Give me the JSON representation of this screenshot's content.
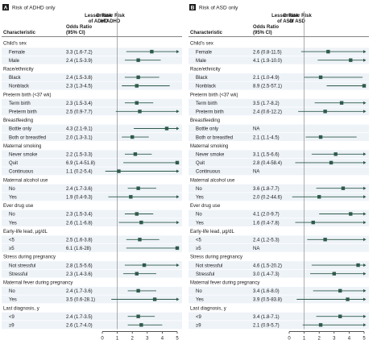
{
  "chart_data": [
    {
      "type": "forest",
      "panel_letter": "A",
      "title": "Risk of ADHD only",
      "columns": [
        "Characteristic",
        "Odds Ratio (95% CI)",
        "Lesser Risk of ADHD",
        "Greater Risk of ADHD"
      ],
      "xlabel": "Odds Ratio (95% CI)",
      "xlim": [
        0,
        5
      ],
      "xticks": [
        "0",
        "1",
        "2",
        "3",
        "4",
        "5"
      ],
      "reference_line": 1,
      "rows": [
        {
          "kind": "group",
          "label": "Child's sex"
        },
        {
          "kind": "item",
          "label": "Female",
          "or": 3.3,
          "lo": 1.6,
          "hi": 7.2,
          "ci_text": "3.3 (1.6-7.2)"
        },
        {
          "kind": "item",
          "label": "Male",
          "or": 2.4,
          "lo": 1.5,
          "hi": 3.9,
          "ci_text": "2.4 (1.5-3.9)"
        },
        {
          "kind": "group",
          "label": "Race/ethnicity"
        },
        {
          "kind": "item",
          "label": "Black",
          "or": 2.4,
          "lo": 1.5,
          "hi": 3.8,
          "ci_text": "2.4 (1.5-3.8)"
        },
        {
          "kind": "item",
          "label": "Nonblack",
          "or": 2.3,
          "lo": 1.3,
          "hi": 4.5,
          "ci_text": "2.3 (1.3-4.5)"
        },
        {
          "kind": "group",
          "label": "Preterm birth (<37 wk)"
        },
        {
          "kind": "item",
          "label": "Term birth",
          "or": 2.3,
          "lo": 1.5,
          "hi": 3.4,
          "ci_text": "2.3 (1.5-3.4)"
        },
        {
          "kind": "item",
          "label": "Preterm birth",
          "or": 2.5,
          "lo": 0.9,
          "hi": 7.7,
          "ci_text": "2.5 (0.9-7.7)"
        },
        {
          "kind": "group",
          "label": "Breastfeeding"
        },
        {
          "kind": "item",
          "label": "Bottle only",
          "or": 4.3,
          "lo": 2.1,
          "hi": 9.1,
          "ci_text": "4.3 (2.1-9.1)"
        },
        {
          "kind": "item",
          "label": "Both or breastfed",
          "or": 2.0,
          "lo": 1.3,
          "hi": 3.1,
          "ci_text": "2.0 (1.3-3.1)"
        },
        {
          "kind": "group",
          "label": "Maternal smoking"
        },
        {
          "kind": "item",
          "label": "Never smoke",
          "or": 2.2,
          "lo": 1.5,
          "hi": 3.3,
          "ci_text": "2.2 (1.5-3.3)"
        },
        {
          "kind": "item",
          "label": "Quit",
          "or": 6.9,
          "lo": 1.4,
          "hi": 51.8,
          "ci_text": "6.9 (1.4-51.8)"
        },
        {
          "kind": "item",
          "label": "Continuous",
          "or": 1.1,
          "lo": 0.2,
          "hi": 5.4,
          "ci_text": "1.1 (0.2-5.4)"
        },
        {
          "kind": "group",
          "label": "Maternal alcohol use"
        },
        {
          "kind": "item",
          "label": "No",
          "or": 2.4,
          "lo": 1.7,
          "hi": 3.6,
          "ci_text": "2.4 (1.7-3.6)"
        },
        {
          "kind": "item",
          "label": "Yes",
          "or": 1.9,
          "lo": 0.4,
          "hi": 9.3,
          "ci_text": "1.9 (0.4-9.3)"
        },
        {
          "kind": "group",
          "label": "Ever drug use"
        },
        {
          "kind": "item",
          "label": "No",
          "or": 2.3,
          "lo": 1.5,
          "hi": 3.4,
          "ci_text": "2.3 (1.5-3.4)"
        },
        {
          "kind": "item",
          "label": "Yes",
          "or": 2.6,
          "lo": 1.1,
          "hi": 6.8,
          "ci_text": "2.6 (1.1-6.8)"
        },
        {
          "kind": "group",
          "label": "Early-life lead, µg/dL"
        },
        {
          "kind": "item",
          "label": "<5",
          "or": 2.5,
          "lo": 1.6,
          "hi": 3.8,
          "ci_text": "2.5 (1.6-3.8)"
        },
        {
          "kind": "item",
          "label": "≥5",
          "or": 6.1,
          "lo": 1.6,
          "hi": 28.0,
          "ci_text": "6.1 (1.6-28)"
        },
        {
          "kind": "group",
          "label": "Stress during pregnancy"
        },
        {
          "kind": "item",
          "label": "Not stressful",
          "or": 2.8,
          "lo": 1.5,
          "hi": 5.6,
          "ci_text": "2.8 (1.5-5.6)"
        },
        {
          "kind": "item",
          "label": "Stressful",
          "or": 2.3,
          "lo": 1.4,
          "hi": 3.6,
          "ci_text": "2.3 (1.4-3.6)"
        },
        {
          "kind": "group",
          "label": "Maternal fever during pregnancy"
        },
        {
          "kind": "item",
          "label": "No",
          "or": 2.4,
          "lo": 1.7,
          "hi": 3.6,
          "ci_text": "2.4 (1.7-3.6)"
        },
        {
          "kind": "item",
          "label": "Yes",
          "or": 3.5,
          "lo": 0.6,
          "hi": 28.1,
          "ci_text": "3.5 (0.6-28.1)"
        },
        {
          "kind": "group",
          "label": "Last diagnosis, y"
        },
        {
          "kind": "item",
          "label": "<9",
          "or": 2.4,
          "lo": 1.7,
          "hi": 3.5,
          "ci_text": "2.4 (1.7-3.5)"
        },
        {
          "kind": "item",
          "label": "≥9",
          "or": 2.6,
          "lo": 1.7,
          "hi": 4.0,
          "ci_text": "2.6 (1.7-4.0)"
        }
      ]
    },
    {
      "type": "forest",
      "panel_letter": "B",
      "title": "Risk of ASD only",
      "columns": [
        "Characteristic",
        "Odds Ratio (95% CI)",
        "Lesser Risk of ASD",
        "Greater Risk of ASD"
      ],
      "xlabel": "Odds Ratio (95% CI)",
      "xlim": [
        0,
        5
      ],
      "xticks": [
        "0",
        "1",
        "2",
        "3",
        "4",
        "5"
      ],
      "reference_line": 1,
      "rows": [
        {
          "kind": "group",
          "label": "Child's sex"
        },
        {
          "kind": "item",
          "label": "Female",
          "or": 2.6,
          "lo": 0.8,
          "hi": 11.5,
          "ci_text": "2.6 (0.8-11.5)"
        },
        {
          "kind": "item",
          "label": "Male",
          "or": 4.1,
          "lo": 1.9,
          "hi": 10.0,
          "ci_text": "4.1 (1.9-10.0)"
        },
        {
          "kind": "group",
          "label": "Race/ethnicity"
        },
        {
          "kind": "item",
          "label": "Black",
          "or": 2.1,
          "lo": 1.0,
          "hi": 4.9,
          "ci_text": "2.1 (1.0-4.9)"
        },
        {
          "kind": "item",
          "label": "Nonblack",
          "or": 8.9,
          "lo": 2.5,
          "hi": 57.1,
          "ci_text": "8.9 (2.5-57.1)"
        },
        {
          "kind": "group",
          "label": "Preterm birth (<37 wk)"
        },
        {
          "kind": "item",
          "label": "Term birth",
          "or": 3.5,
          "lo": 1.7,
          "hi": 8.2,
          "ci_text": "3.5 (1.7-8.2)"
        },
        {
          "kind": "item",
          "label": "Preterm birth",
          "or": 2.4,
          "lo": 0.6,
          "hi": 12.2,
          "ci_text": "2.4 (0.6-12.2)"
        },
        {
          "kind": "group",
          "label": "Breastfeeding"
        },
        {
          "kind": "item",
          "label": "Bottle only",
          "ci_text": "NA"
        },
        {
          "kind": "item",
          "label": "Both or breastfed",
          "or": 2.1,
          "lo": 1.1,
          "hi": 4.5,
          "ci_text": "2.1 (1.1-4.5)"
        },
        {
          "kind": "group",
          "label": "Maternal smoking"
        },
        {
          "kind": "item",
          "label": "Never smoke",
          "or": 3.1,
          "lo": 1.5,
          "hi": 6.6,
          "ci_text": "3.1 (1.5-6.6)"
        },
        {
          "kind": "item",
          "label": "Quit",
          "or": 2.8,
          "lo": 0.4,
          "hi": 58.4,
          "ci_text": "2.8 (0.4-58.4)"
        },
        {
          "kind": "item",
          "label": "Continuous",
          "ci_text": "NA"
        },
        {
          "kind": "group",
          "label": "Maternal alcohol use"
        },
        {
          "kind": "item",
          "label": "No",
          "or": 3.6,
          "lo": 1.8,
          "hi": 7.7,
          "ci_text": "3.6 (1.8-7.7)"
        },
        {
          "kind": "item",
          "label": "Yes",
          "or": 2.0,
          "lo": 0.2,
          "hi": 44.6,
          "ci_text": "2.0 (0.2-44.6)"
        },
        {
          "kind": "group",
          "label": "Ever drug use"
        },
        {
          "kind": "item",
          "label": "No",
          "or": 4.1,
          "lo": 2.0,
          "hi": 9.7,
          "ci_text": "4.1 (2.0-9.7)"
        },
        {
          "kind": "item",
          "label": "Yes",
          "or": 1.6,
          "lo": 0.4,
          "hi": 7.8,
          "ci_text": "1.6 (0.4-7.8)"
        },
        {
          "kind": "group",
          "label": "Early-life lead, µg/dL"
        },
        {
          "kind": "item",
          "label": "<5",
          "or": 2.4,
          "lo": 1.2,
          "hi": 5.3,
          "ci_text": "2.4 (1.2-5.3)"
        },
        {
          "kind": "item",
          "label": "≥5",
          "ci_text": "NA"
        },
        {
          "kind": "group",
          "label": "Stress during pregnancy"
        },
        {
          "kind": "item",
          "label": "Not stressful",
          "or": 4.6,
          "lo": 1.5,
          "hi": 20.2,
          "ci_text": "4.6 (1.5-20.2)"
        },
        {
          "kind": "item",
          "label": "Stressful",
          "or": 3.0,
          "lo": 1.4,
          "hi": 7.3,
          "ci_text": "3.0 (1.4-7.3)"
        },
        {
          "kind": "group",
          "label": "Maternal fever during pregnancy"
        },
        {
          "kind": "item",
          "label": "No",
          "or": 3.4,
          "lo": 1.6,
          "hi": 8.0,
          "ci_text": "3.4 (1.6-8.0)"
        },
        {
          "kind": "item",
          "label": "Yes",
          "or": 3.9,
          "lo": 0.5,
          "hi": 83.8,
          "ci_text": "3.9 (0.5-83.8)"
        },
        {
          "kind": "group",
          "label": "Last diagnosis, y"
        },
        {
          "kind": "item",
          "label": "<9",
          "or": 3.4,
          "lo": 1.8,
          "hi": 7.1,
          "ci_text": "3.4 (1.8-7.1)"
        },
        {
          "kind": "item",
          "label": "≥9",
          "or": 2.1,
          "lo": 0.9,
          "hi": 5.7,
          "ci_text": "2.1 (0.9-5.7)"
        }
      ]
    }
  ],
  "colors": {
    "marker": "#2f5a4b",
    "ci_line": "#2f5a4b",
    "item_band": "#eef3f8",
    "header_rule": "#5b5b5b",
    "reference_line": "#8a8a8a",
    "panel_badge": "#1d1d1d"
  }
}
